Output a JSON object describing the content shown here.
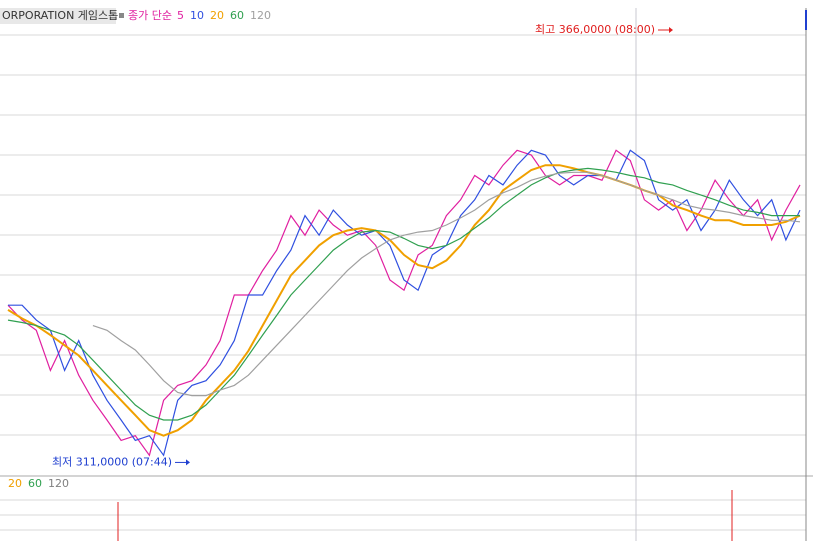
{
  "chart_data": [
    {
      "type": "line",
      "title": "ORPORATION 게임스톱",
      "subtitle": "종가 단순",
      "ylim": [
        309.4,
        368.8
      ],
      "series": [
        {
          "name": "5",
          "color": "#e020a0",
          "values": [
            331.0,
            329.1,
            327.8,
            322.7,
            326.5,
            322.1,
            318.9,
            316.4,
            313.8,
            314.4,
            311.9,
            318.9,
            320.8,
            321.4,
            323.4,
            326.5,
            332.3,
            332.3,
            335.4,
            338.0,
            342.4,
            339.9,
            343.1,
            341.2,
            339.9,
            340.5,
            338.6,
            334.2,
            332.9,
            337.4,
            338.6,
            342.4,
            344.4,
            347.5,
            346.3,
            348.8,
            350.7,
            350.1,
            347.5,
            346.3,
            347.5,
            347.5,
            346.9,
            350.7,
            349.4,
            344.4,
            343.1,
            344.4,
            340.5,
            343.1,
            346.9,
            344.4,
            342.4,
            344.4,
            339.3,
            343.1,
            346.3
          ]
        },
        {
          "name": "10",
          "color": "#3050e0",
          "values": [
            331.0,
            331.0,
            329.1,
            327.8,
            322.7,
            326.5,
            322.1,
            318.9,
            316.4,
            313.8,
            314.4,
            311.9,
            318.9,
            320.8,
            321.4,
            323.4,
            326.5,
            332.3,
            332.3,
            335.4,
            338.0,
            342.4,
            339.9,
            343.1,
            341.2,
            339.9,
            340.5,
            338.6,
            334.2,
            332.9,
            337.4,
            338.6,
            342.4,
            344.4,
            347.5,
            346.3,
            348.8,
            350.7,
            350.1,
            347.5,
            346.3,
            347.5,
            347.5,
            346.9,
            350.7,
            349.4,
            344.4,
            343.1,
            344.4,
            340.5,
            343.1,
            346.9,
            344.4,
            342.4,
            344.4,
            339.3,
            343.1
          ]
        },
        {
          "name": "20",
          "color": "#f0a000",
          "values": [
            330.4,
            329.3,
            328.4,
            327.2,
            325.9,
            324.6,
            322.7,
            320.8,
            318.9,
            317.0,
            315.1,
            314.4,
            315.1,
            316.4,
            318.9,
            320.8,
            322.7,
            325.2,
            328.4,
            331.6,
            334.8,
            336.7,
            338.6,
            339.9,
            340.5,
            340.8,
            340.5,
            339.3,
            337.4,
            336.1,
            335.7,
            336.7,
            338.6,
            341.2,
            343.1,
            345.6,
            346.9,
            348.2,
            348.8,
            348.8,
            348.4,
            347.9,
            347.5,
            346.9,
            346.3,
            345.6,
            345.0,
            343.7,
            343.1,
            342.4,
            341.8,
            341.8,
            341.2,
            341.2,
            341.2,
            341.6,
            342.4
          ]
        },
        {
          "name": "60",
          "color": "#30a050",
          "values": [
            329.1,
            328.8,
            328.4,
            327.8,
            327.2,
            325.9,
            324.0,
            322.1,
            320.2,
            318.3,
            317.0,
            316.4,
            316.4,
            317.0,
            318.3,
            320.2,
            322.1,
            324.6,
            327.2,
            329.7,
            332.3,
            334.2,
            336.1,
            338.0,
            339.3,
            340.3,
            340.5,
            340.3,
            339.5,
            338.6,
            338.2,
            338.6,
            339.5,
            340.8,
            342.1,
            343.7,
            345.0,
            346.3,
            347.2,
            347.9,
            348.2,
            348.4,
            348.2,
            347.9,
            347.5,
            347.2,
            346.6,
            346.3,
            345.6,
            345.0,
            344.4,
            343.7,
            343.1,
            342.8,
            342.4,
            342.4,
            342.4
          ]
        },
        {
          "name": "120",
          "color": "#a0a0a0",
          "values": [
            null,
            null,
            null,
            null,
            null,
            null,
            328.4,
            327.8,
            326.5,
            325.3,
            323.4,
            321.4,
            319.9,
            319.5,
            319.5,
            320.2,
            320.8,
            322.1,
            324.0,
            325.9,
            327.8,
            329.7,
            331.6,
            333.5,
            335.4,
            337.0,
            338.2,
            339.3,
            339.9,
            340.3,
            340.5,
            341.2,
            342.1,
            343.1,
            344.4,
            345.3,
            346.0,
            346.9,
            347.4,
            347.8,
            347.9,
            347.9,
            347.5,
            346.9,
            346.3,
            345.6,
            345.0,
            344.4,
            343.7,
            343.3,
            343.1,
            342.8,
            342.4,
            342.1,
            341.8,
            341.8,
            341.6
          ]
        }
      ],
      "annotations": [
        {
          "text": "최고 366,0000 (08:00)",
          "value": 366,
          "color": "#e02020"
        },
        {
          "text": "최저 311,0000 (07:44)",
          "value": 311,
          "color": "#2040d0"
        }
      ]
    },
    {
      "type": "bar",
      "series": [
        {
          "name": "20",
          "color": "#f0a000"
        },
        {
          "name": "60",
          "color": "#30a050"
        },
        {
          "name": "120",
          "color": "#808080"
        }
      ]
    }
  ]
}
